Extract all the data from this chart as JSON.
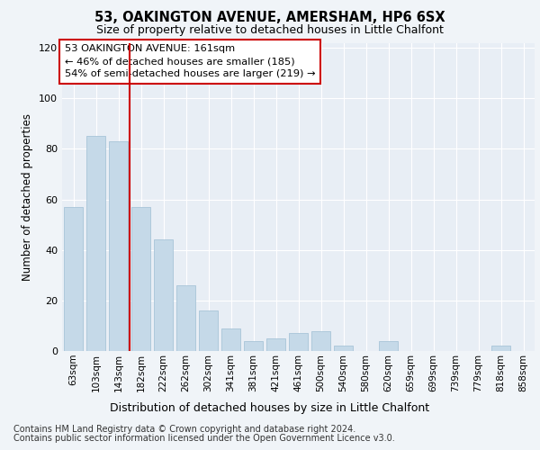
{
  "title": "53, OAKINGTON AVENUE, AMERSHAM, HP6 6SX",
  "subtitle": "Size of property relative to detached houses in Little Chalfont",
  "xlabel": "Distribution of detached houses by size in Little Chalfont",
  "ylabel": "Number of detached properties",
  "annotation_line1": "53 OAKINGTON AVENUE: 161sqm",
  "annotation_line2": "← 46% of detached houses are smaller (185)",
  "annotation_line3": "54% of semi-detached houses are larger (219) →",
  "categories": [
    "63sqm",
    "103sqm",
    "143sqm",
    "182sqm",
    "222sqm",
    "262sqm",
    "302sqm",
    "341sqm",
    "381sqm",
    "421sqm",
    "461sqm",
    "500sqm",
    "540sqm",
    "580sqm",
    "620sqm",
    "659sqm",
    "699sqm",
    "739sqm",
    "779sqm",
    "818sqm",
    "858sqm"
  ],
  "values": [
    57,
    85,
    83,
    57,
    44,
    26,
    16,
    9,
    4,
    5,
    7,
    8,
    2,
    0,
    4,
    0,
    0,
    0,
    0,
    2,
    0
  ],
  "bar_color": "#c5d9e8",
  "bar_edge_color": "#a8c4d8",
  "vline_color": "#cc0000",
  "vline_x": 2.5,
  "ylim": [
    0,
    122
  ],
  "yticks": [
    0,
    20,
    40,
    60,
    80,
    100,
    120
  ],
  "background_color": "#f0f4f8",
  "plot_background": "#e8eef5",
  "grid_color": "#ffffff",
  "footnote1": "Contains HM Land Registry data © Crown copyright and database right 2024.",
  "footnote2": "Contains public sector information licensed under the Open Government Licence v3.0."
}
